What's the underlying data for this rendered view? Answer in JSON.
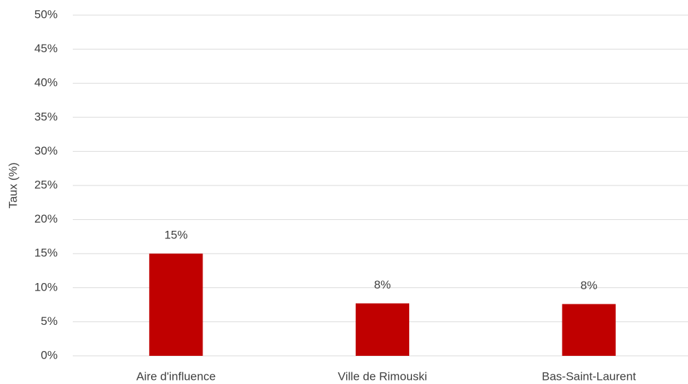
{
  "chart_data": {
    "type": "bar",
    "y_label": "Taux (%)",
    "categories": [
      "Aire d'influence",
      "Ville de Rimouski",
      "Bas-Saint-Laurent"
    ],
    "values": [
      15,
      7.7,
      7.6
    ],
    "value_labels": [
      "15%",
      "8%",
      "8%"
    ],
    "color": "#c00000",
    "ylim": [
      0,
      50
    ],
    "yticks": [
      {
        "value": 0,
        "label": "0%"
      },
      {
        "value": 5,
        "label": "5%"
      },
      {
        "value": 10,
        "label": "10%"
      },
      {
        "value": 15,
        "label": "15%"
      },
      {
        "value": 20,
        "label": "20%"
      },
      {
        "value": 25,
        "label": "25%"
      },
      {
        "value": 30,
        "label": "30%"
      },
      {
        "value": 35,
        "label": "35%"
      },
      {
        "value": 40,
        "label": "40%"
      },
      {
        "value": 45,
        "label": "45%"
      },
      {
        "value": 50,
        "label": "50%"
      }
    ],
    "grid": true
  }
}
